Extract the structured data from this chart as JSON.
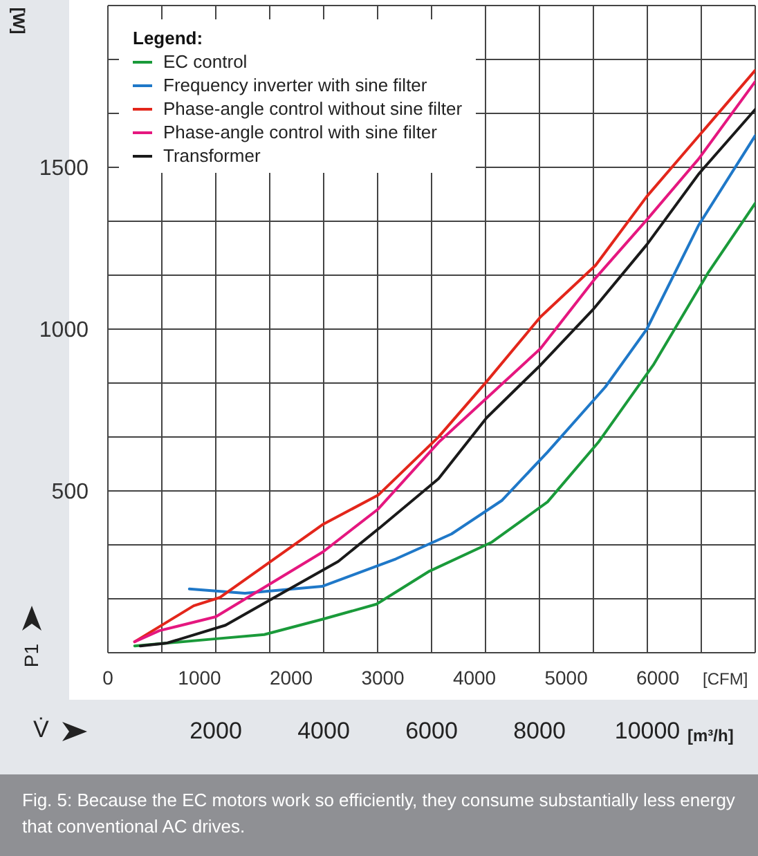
{
  "chart_data": {
    "type": "line",
    "xlabel": "V̇",
    "ylabel": "P1",
    "legend_title": "Legend:",
    "legend": "top left",
    "grid": true,
    "marker": "none",
    "line_style": "solid",
    "xlim": [
      0,
      12000
    ],
    "xticks": [
      {
        "value": 0,
        "label": null
      },
      {
        "value": 1000,
        "label": null
      },
      2000,
      {
        "value": 3000,
        "label": null
      },
      4000,
      {
        "value": 5000,
        "label": null
      },
      6000,
      {
        "value": 7000,
        "label": null
      },
      8000,
      {
        "value": 9000,
        "label": null
      },
      10000,
      {
        "value": 11000,
        "label": null
      },
      {
        "value": 12000,
        "label": null
      }
    ],
    "x2lim": [
      0,
      7063
    ],
    "x2ticks": [
      0,
      1000,
      2000,
      3000,
      4000,
      5000,
      6000
    ],
    "ylim": [
      0,
      2000
    ],
    "yticks": [
      {
        "value": 166.7,
        "label": null
      },
      {
        "value": 333.3,
        "label": null
      },
      500,
      {
        "value": 666.7,
        "label": null
      },
      {
        "value": 833.3,
        "label": null
      },
      1000,
      {
        "value": 1166.7,
        "label": null
      },
      {
        "value": 1333.3,
        "label": null
      },
      1500,
      {
        "value": 1666.7,
        "label": null
      },
      {
        "value": 1833.3,
        "label": null
      }
    ],
    "series": [
      {
        "name": "EC control",
        "color": "#1a9a3a",
        "x": [
          496,
          1100,
          2000,
          2900,
          3970,
          4980,
          5960,
          7120,
          8150,
          9090,
          10110,
          11130,
          12000
        ],
        "values": [
          21,
          30,
          43,
          56,
          103,
          150,
          252,
          342,
          466,
          650,
          889,
          1175,
          1389
        ]
      },
      {
        "name": "Frequency inverter with sine filter",
        "color": "#1f78c8",
        "x": [
          1510,
          2540,
          3970,
          5340,
          6370,
          7300,
          8150,
          9220,
          9990,
          10950,
          12000
        ],
        "values": [
          197,
          184,
          205,
          290,
          367,
          470,
          620,
          821,
          1000,
          1321,
          1598
        ]
      },
      {
        "name": "Phase-angle control without sine filter",
        "color": "#e3261b",
        "x": [
          496,
          1590,
          2080,
          3990,
          5010,
          6130,
          7020,
          8020,
          9040,
          9990,
          12000
        ],
        "values": [
          34,
          145,
          171,
          397,
          487,
          667,
          838,
          1038,
          1197,
          1410,
          1800
        ]
      },
      {
        "name": "Phase-angle control with sine filter",
        "color": "#e5177f",
        "x": [
          496,
          954,
          2000,
          3990,
          5010,
          6130,
          8020,
          9040,
          9990,
          10950,
          12000
        ],
        "values": [
          34,
          68,
          111,
          312,
          444,
          650,
          940,
          1158,
          1338,
          1526,
          1765
        ]
      },
      {
        "name": "Transformer",
        "color": "#1a1a1a",
        "x": [
          600,
          1100,
          2180,
          3270,
          4270,
          5060,
          6130,
          7020,
          8020,
          8990,
          9990,
          10950,
          12000
        ],
        "values": [
          21,
          30,
          85,
          188,
          282,
          389,
          538,
          726,
          889,
          1060,
          1261,
          1479,
          1679
        ]
      }
    ],
    "annotations": [
      "[W]",
      "[CFM]",
      "[m³/h]",
      "Fig. 5: Because the EC motors work so efficiently, they consume substantially less energy that conventional AC drives."
    ]
  }
}
